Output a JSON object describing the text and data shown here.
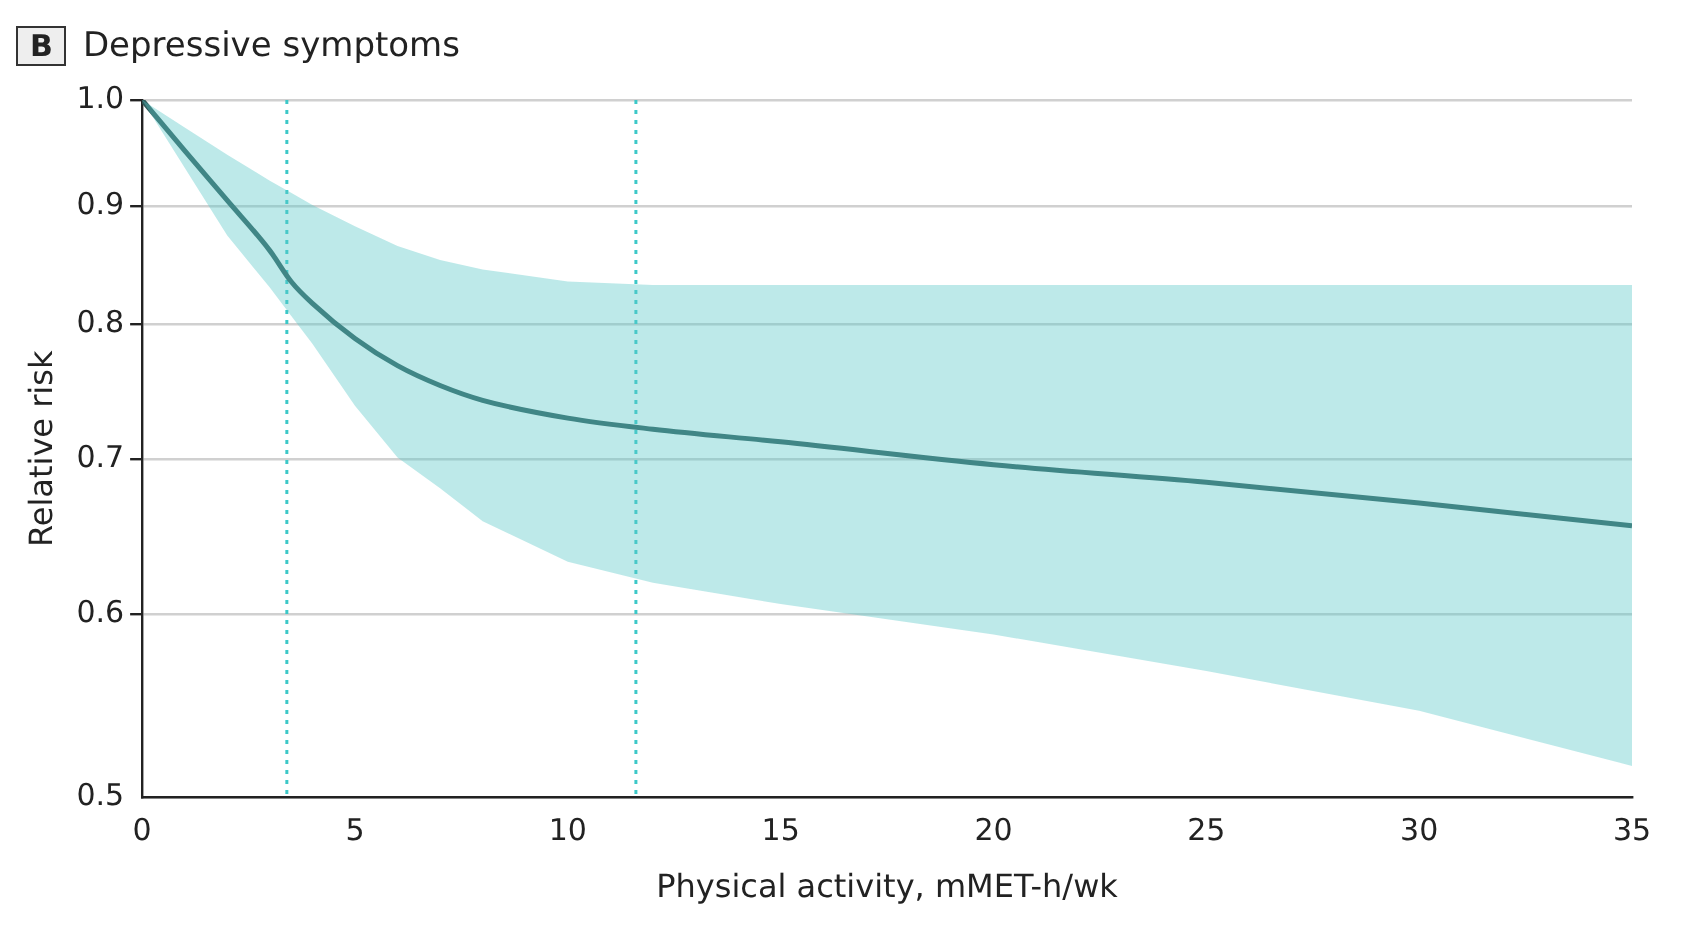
{
  "chart_data": {
    "type": "line",
    "title": "Depressive symptoms",
    "annotations": [
      "B"
    ],
    "xlabel": "Physical activity, mMET-h/wk",
    "ylabel": "Relative risk",
    "log": "y",
    "grid": "y",
    "legend": false,
    "marker": "none",
    "line_style": "solid",
    "xlim": [
      0,
      35
    ],
    "xticks": [
      0,
      5,
      10,
      15,
      20,
      25,
      30,
      35
    ],
    "ylim": [
      0.5,
      1.0
    ],
    "yticks": [
      {
        "value": 0.5,
        "label": "0.5"
      },
      {
        "value": 0.6,
        "label": "0.6"
      },
      {
        "value": 0.7,
        "label": "0.7"
      },
      {
        "value": 0.8,
        "label": "0.8"
      },
      {
        "value": 0.9,
        "label": "0.9"
      },
      {
        "value": 1.0,
        "label": "1.0"
      }
    ],
    "series": [
      {
        "color": "#2f5a5a",
        "x": [
          0,
          1,
          2,
          3,
          3.5,
          4,
          5,
          6,
          7,
          8,
          10,
          12,
          15,
          20,
          25,
          30,
          35
        ],
        "values": [
          1.0,
          0.951,
          0.905,
          0.861,
          0.835,
          0.817,
          0.789,
          0.768,
          0.753,
          0.742,
          0.729,
          0.721,
          0.712,
          0.696,
          0.684,
          0.67,
          0.655
        ],
        "lower": [
          1.0,
          0.935,
          0.874,
          0.83,
          0.807,
          0.785,
          0.738,
          0.701,
          0.68,
          0.658,
          0.632,
          0.619,
          0.606,
          0.588,
          0.567,
          0.545,
          0.516
        ],
        "upper": [
          1.0,
          0.973,
          0.947,
          0.923,
          0.912,
          0.901,
          0.882,
          0.865,
          0.853,
          0.845,
          0.835,
          0.832,
          0.832,
          0.832,
          0.832,
          0.832,
          0.832
        ]
      }
    ],
    "ref_lines": [
      {
        "axis": "x",
        "value": 3.4,
        "color": "#3cc8c8",
        "line_style": "dotted"
      },
      {
        "axis": "x",
        "value": 11.6,
        "color": "#3cc8c8",
        "line_style": "dotted"
      }
    ]
  }
}
